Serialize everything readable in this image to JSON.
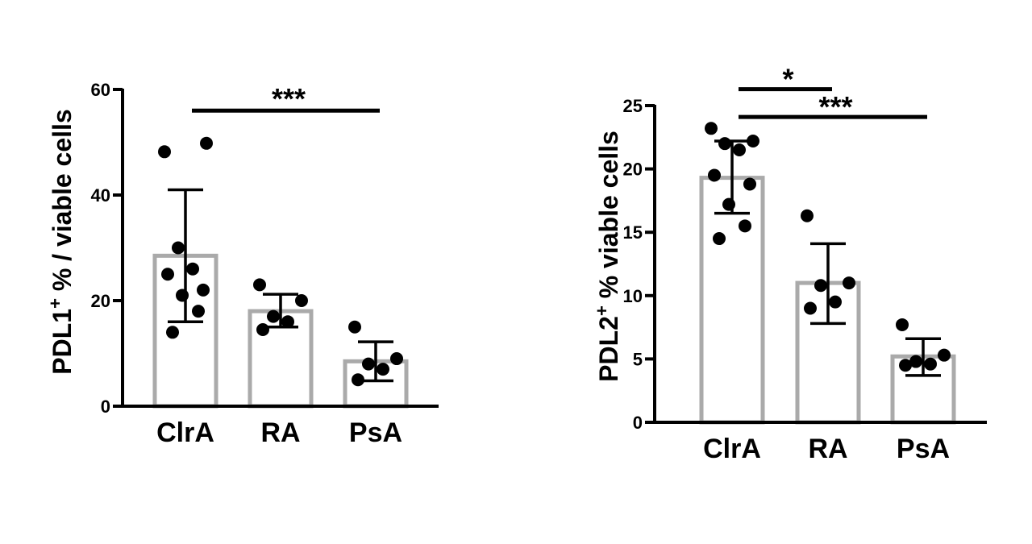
{
  "chart_data": [
    {
      "type": "bar",
      "ylabel_main": "PDL1",
      "ylabel_sup": "+",
      "ylabel_rest": " % / viable cells",
      "xlabel": "",
      "ylim": [
        0,
        60
      ],
      "yticks": [
        0,
        20,
        40,
        60
      ],
      "categories": [
        "ClrA",
        "RA",
        "PsA"
      ],
      "bar_color": "#aaaaaa",
      "point_color": "#000000",
      "means": [
        28.5,
        18,
        8.5
      ],
      "error_low": [
        16,
        15,
        4.8
      ],
      "error_high": [
        41,
        21.2,
        12.2
      ],
      "points": [
        [
          48.2,
          49.8,
          30,
          26,
          25,
          22,
          21,
          18,
          14
        ],
        [
          23,
          20,
          17,
          16,
          14.5
        ],
        [
          15,
          9,
          8,
          7,
          5
        ]
      ],
      "significance": [
        {
          "from": "ClrA",
          "to": "PsA",
          "y": 56,
          "label": "***"
        }
      ]
    },
    {
      "type": "bar",
      "ylabel_main": "PDL2",
      "ylabel_sup": "+",
      "ylabel_rest": " % viable cells",
      "xlabel": "",
      "ylim": [
        0,
        25
      ],
      "yticks": [
        0,
        5,
        10,
        15,
        20,
        25
      ],
      "categories": [
        "ClrA",
        "RA",
        "PsA"
      ],
      "bar_color": "#aaaaaa",
      "point_color": "#000000",
      "means": [
        19.3,
        11,
        5.2
      ],
      "error_low": [
        16.5,
        7.8,
        3.7
      ],
      "error_high": [
        22.2,
        14.1,
        6.6
      ],
      "points": [
        [
          23.2,
          22.2,
          22,
          21.5,
          19.5,
          18.8,
          17.2,
          15.5,
          14.5
        ],
        [
          16.3,
          11,
          10.8,
          9.5,
          9
        ],
        [
          7.7,
          5.3,
          4.8,
          4.6,
          4.5
        ]
      ],
      "significance": [
        {
          "from": "ClrA",
          "to": "RA",
          "y": 26.3,
          "label": "*"
        },
        {
          "from": "ClrA",
          "to": "PsA",
          "y": 24.1,
          "label": "***"
        }
      ]
    }
  ]
}
